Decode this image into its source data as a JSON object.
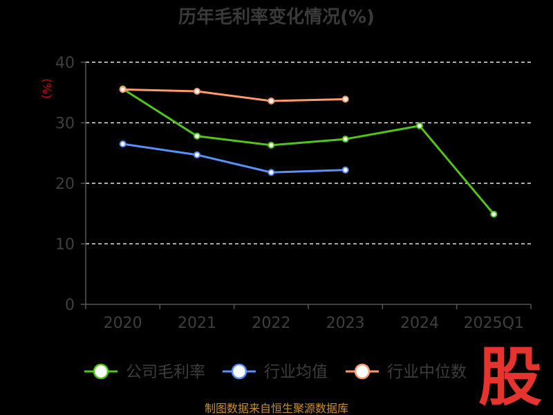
{
  "chart_data": {
    "type": "line",
    "title": "历年毛利率变化情况(%)",
    "ylabel": "(%)",
    "categories": [
      "2020",
      "2021",
      "2022",
      "2023",
      "2024",
      "2025Q1"
    ],
    "yticks": [
      "0",
      "10",
      "20",
      "30",
      "40"
    ],
    "ylim": [
      0,
      40
    ],
    "grid": true,
    "legend_position": "bottom",
    "series": [
      {
        "name": "公司毛利率",
        "color": "#52c41a",
        "values": [
          35.6,
          27.8,
          26.3,
          27.3,
          29.5,
          14.9
        ]
      },
      {
        "name": "行业均值",
        "color": "#5b8ff9",
        "values": [
          26.5,
          24.7,
          21.8,
          22.2,
          null,
          null
        ]
      },
      {
        "name": "行业中位数",
        "color": "#ff9a6a",
        "values": [
          35.5,
          35.2,
          33.6,
          33.9,
          null,
          null
        ]
      }
    ]
  },
  "source": "制图数据来自恒生聚源数据库",
  "logo_text": "股"
}
